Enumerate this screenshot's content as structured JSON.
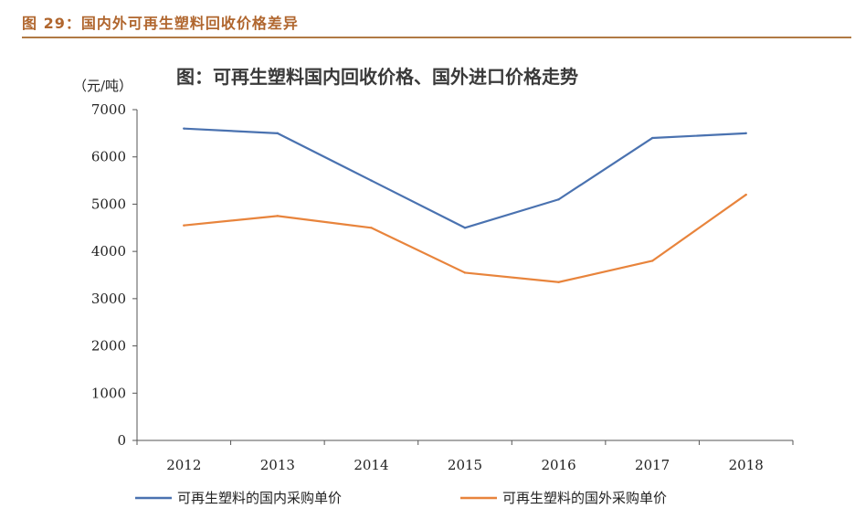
{
  "header": {
    "caption": "图 29：国内外可再生塑料回收价格差异"
  },
  "chart_data": {
    "type": "line",
    "title": "图：可再生塑料国内回收价格、国外进口价格走势",
    "ylabel": "（元/吨）",
    "xlabel": "",
    "categories": [
      "2012",
      "2013",
      "2014",
      "2015",
      "2016",
      "2017",
      "2018"
    ],
    "yticks": [
      0,
      1000,
      2000,
      3000,
      4000,
      5000,
      6000,
      7000
    ],
    "ylim": [
      0,
      7000
    ],
    "grid": false,
    "legend_position": "bottom",
    "series": [
      {
        "name": "可再生塑料的国内采购单价",
        "color": "#4a72b0",
        "values": [
          6600,
          6500,
          5500,
          4500,
          5100,
          6400,
          6500
        ]
      },
      {
        "name": "可再生塑料的国外采购单价",
        "color": "#e8843c",
        "values": [
          4550,
          4750,
          4500,
          3550,
          3350,
          3800,
          5200
        ]
      }
    ]
  }
}
